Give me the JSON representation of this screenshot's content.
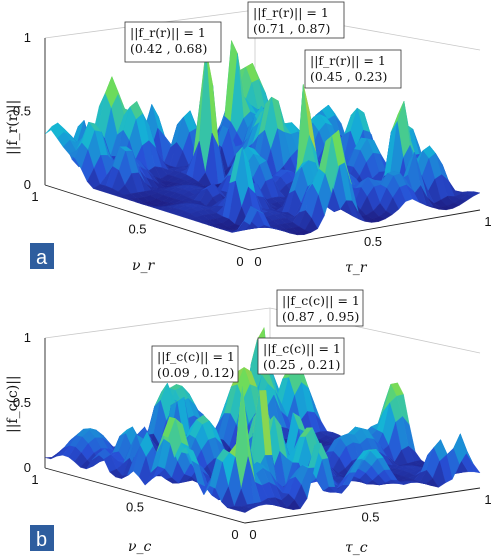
{
  "panels": [
    {
      "id": "a",
      "panel_label": "a",
      "zlabel": "||f_r(r)||",
      "xlabel": "τ_r",
      "ylabel": "ν_r",
      "z_ticks": [
        "0",
        "0.5",
        "1"
      ],
      "x_ticks": [
        "0",
        "0.5",
        "1"
      ],
      "y_ticks": [
        "0",
        "0.5",
        "1"
      ],
      "annotations": [
        {
          "line1": "||f_r(r)|| = 1",
          "line2": "(0.42 , 0.68)"
        },
        {
          "line1": "||f_r(r)|| = 1",
          "line2": "(0.71 , 0.87)"
        },
        {
          "line1": "||f_r(r)|| = 1",
          "line2": "(0.45 , 0.23)"
        }
      ]
    },
    {
      "id": "b",
      "panel_label": "b",
      "zlabel": "||f_c(c)||",
      "xlabel": "τ_c",
      "ylabel": "ν_c",
      "z_ticks": [
        "0",
        "0.5",
        "1"
      ],
      "x_ticks": [
        "0",
        "0.5",
        "1"
      ],
      "y_ticks": [
        "0",
        "0.5",
        "1"
      ],
      "annotations": [
        {
          "line1": "||f_c(c)|| = 1",
          "line2": "(0.87 , 0.95)"
        },
        {
          "line1": "||f_c(c)|| = 1",
          "line2": "(0.09 , 0.12)"
        },
        {
          "line1": "||f_c(c)|| = 1",
          "line2": "(0.25 , 0.21)"
        }
      ]
    }
  ],
  "chart_data": [
    {
      "type": "surface3d",
      "zlabel": "||f_r(r)||",
      "xlabel": "τ_r",
      "ylabel": "ν_r",
      "xlim": [
        0,
        1
      ],
      "ylim": [
        0,
        1
      ],
      "zlim": [
        0,
        1
      ],
      "colormap": "jet",
      "peaks": [
        {
          "tau": 0.42,
          "nu": 0.68,
          "value": 1
        },
        {
          "tau": 0.71,
          "nu": 0.87,
          "value": 1
        },
        {
          "tau": 0.45,
          "nu": 0.23,
          "value": 1
        }
      ]
    },
    {
      "type": "surface3d",
      "zlabel": "||f_c(c)||",
      "xlabel": "τ_c",
      "ylabel": "ν_c",
      "xlim": [
        0,
        1
      ],
      "ylim": [
        0,
        1
      ],
      "zlim": [
        0,
        1
      ],
      "colormap": "jet",
      "peaks": [
        {
          "tau": 0.87,
          "nu": 0.95,
          "value": 1
        },
        {
          "tau": 0.09,
          "nu": 0.12,
          "value": 1
        },
        {
          "tau": 0.25,
          "nu": 0.21,
          "value": 1
        }
      ]
    }
  ]
}
